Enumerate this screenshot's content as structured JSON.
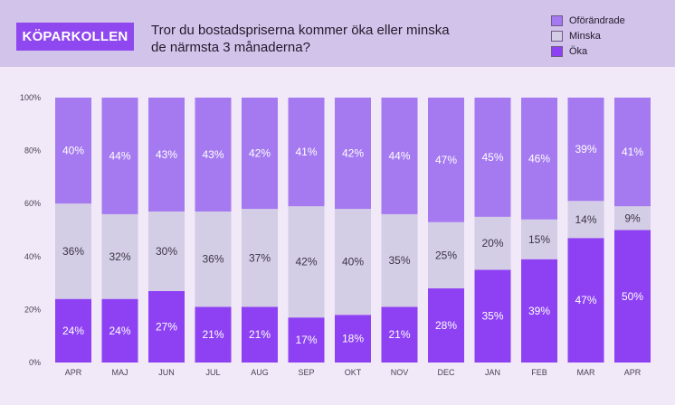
{
  "header": {
    "brand": "KÖPARKOLLEN",
    "title_line1": "Tror du bostadspriserna kommer öka eller minska",
    "title_line2": "de närmsta 3 månaderna?"
  },
  "legend": [
    {
      "label": "Oförändrade",
      "color": "#a57af0"
    },
    {
      "label": "Minska",
      "color": "#d3cde6"
    },
    {
      "label": "Öka",
      "color": "#8d41f3"
    }
  ],
  "chart_data": {
    "type": "bar",
    "stacked": true,
    "categories": [
      "APR",
      "MAJ",
      "JUN",
      "JUL",
      "AUG",
      "SEP",
      "OKT",
      "NOV",
      "DEC",
      "JAN",
      "FEB",
      "MAR",
      "APR"
    ],
    "series": [
      {
        "name": "Öka",
        "values": [
          24,
          24,
          27,
          21,
          21,
          17,
          18,
          21,
          28,
          35,
          39,
          47,
          50
        ],
        "color": "#8d41f3",
        "label_color": "#ffffff"
      },
      {
        "name": "Minska",
        "values": [
          36,
          32,
          30,
          36,
          37,
          42,
          40,
          35,
          25,
          20,
          15,
          14,
          9
        ],
        "color": "#d3cde6",
        "label_color": "#3c3546"
      },
      {
        "name": "Oförändrade",
        "values": [
          40,
          44,
          43,
          43,
          42,
          41,
          42,
          44,
          47,
          45,
          46,
          39,
          41
        ],
        "color": "#a57af0",
        "label_color": "#ffffff"
      }
    ],
    "yticks": [
      "0%",
      "20%",
      "40%",
      "60%",
      "80%",
      "100%"
    ],
    "ylim": [
      0,
      100
    ],
    "title": "Tror du bostadspriserna kommer öka eller minska de närmsta 3 månaderna?",
    "xlabel": "",
    "ylabel": ""
  }
}
